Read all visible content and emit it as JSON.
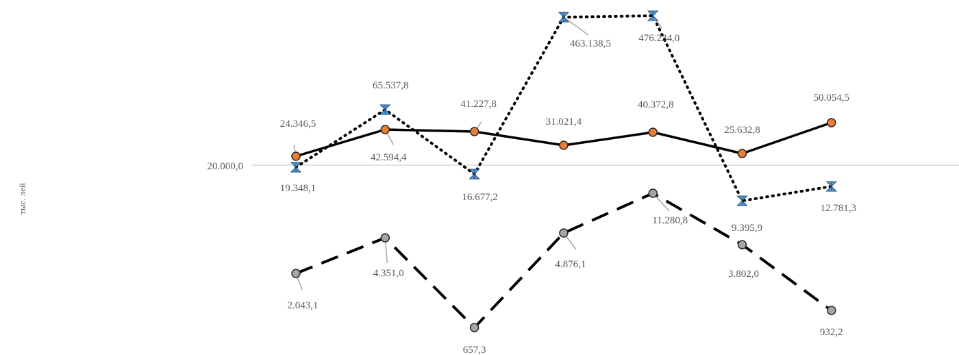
{
  "chart_data": {
    "type": "line",
    "ylabel": "тыс. лей",
    "reference_tick": "20.000,0",
    "reference_value": 20000,
    "y_scale": "log",
    "categories_count": 7,
    "grid": false,
    "series": [
      {
        "style": "solid",
        "marker": "circle",
        "marker_color": "#ED7D31",
        "values": [
          24346.5,
          42594.4,
          41227.8,
          31021.4,
          40372.8,
          25632.8,
          50054.5
        ],
        "labels": [
          "24.346,5",
          "42.594,4",
          "41.227,8",
          "31.021,4",
          "40.372,8",
          "25.632,8",
          "50.054,5"
        ]
      },
      {
        "style": "dotted",
        "marker": "star",
        "marker_color": "#5B9BD5",
        "values": [
          19348.1,
          65537.8,
          16677.2,
          463138.5,
          476234.0,
          9395.9,
          12781.3
        ],
        "labels": [
          "19.348,1",
          "65.537,8",
          "16.677,2",
          "463.138,5",
          "476.234,0",
          "9.395,9",
          "12.781,3"
        ]
      },
      {
        "style": "dashed",
        "marker": "circle",
        "marker_color": "#A5A5A5",
        "values": [
          2043.1,
          4351.0,
          657.3,
          4876.1,
          11280.8,
          3802.0,
          932.2
        ],
        "labels": [
          "2.043,1",
          "4.351,0",
          "657,3",
          "4.876,1",
          "11.280,8",
          "3.802,0",
          "932,2"
        ]
      }
    ]
  }
}
